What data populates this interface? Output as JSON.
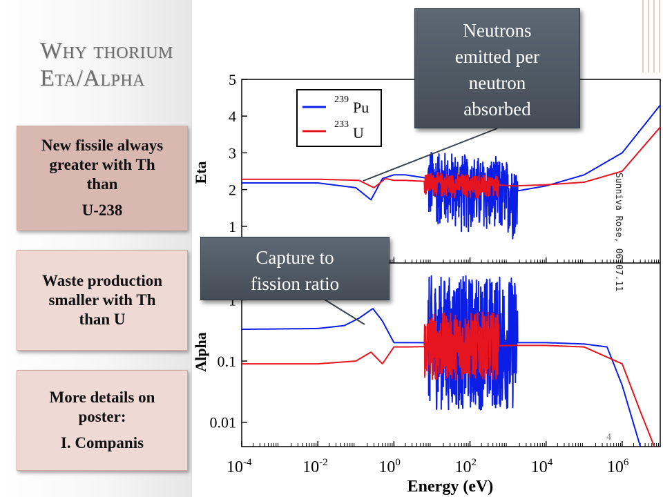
{
  "slide": {
    "title_line1": "Why thorium",
    "title_line2": "Eta/Alpha"
  },
  "cards": [
    {
      "lines": [
        "New fissile always",
        "greater with Th",
        "than"
      ],
      "extra": "U-238"
    },
    {
      "lines": [
        "Waste production",
        "smaller with Th",
        "than U"
      ],
      "extra": ""
    },
    {
      "lines": [
        "More details on",
        "poster:"
      ],
      "extra": "I. Companis"
    }
  ],
  "callouts": {
    "top": [
      "Neutrons",
      "emitted per",
      "neutron",
      "absorbed"
    ],
    "middle": [
      "Capture to",
      "fission ratio"
    ]
  },
  "colors": {
    "pu": "#0b1ee6",
    "u": "#e6141e",
    "callout": "#4f5964",
    "card": "#d9b8b1",
    "card_light": "#efd9d5",
    "title": "#6d6d6d"
  },
  "chart_data": {
    "type": "line",
    "xlabel": "Energy (eV)",
    "x_scale": "log",
    "x_ticks": [
      "10-4",
      "10-2",
      "10^0",
      "10^2",
      "10^4",
      "10^6"
    ],
    "x_range_ev": [
      0.0001,
      10000000
    ],
    "credit": "Sunniva Rose, 06.07.11",
    "page_number": "4",
    "legend": {
      "pu_mass": "239",
      "pu_sym": "Pu",
      "u_mass": "233",
      "u_sym": "U",
      "placement": "top-left"
    },
    "panels": [
      {
        "ylabel": "Eta",
        "y_scale": "linear",
        "y_range": [
          0,
          5
        ],
        "y_ticks": [
          "1",
          "2",
          "3",
          "4",
          "5"
        ],
        "series": [
          {
            "name": "239Pu",
            "x": [
              0.0001,
              0.01,
              0.1,
              0.25,
              0.5,
              1,
              2,
              1500,
              10000,
              100000,
              1000000,
              10000000
            ],
            "y": [
              2.18,
              2.18,
              2.05,
              1.72,
              2.3,
              2.4,
              2.4,
              1.95,
              2.1,
              2.4,
              3.0,
              4.3
            ]
          },
          {
            "name": "233U",
            "x": [
              0.0001,
              0.01,
              0.12,
              0.3,
              0.6,
              1,
              2,
              1500,
              10000,
              100000,
              1000000,
              10000000
            ],
            "y": [
              2.28,
              2.28,
              2.25,
              2.05,
              2.3,
              2.25,
              2.25,
              2.1,
              2.13,
              2.2,
              2.5,
              3.7
            ]
          }
        ]
      },
      {
        "ylabel": "Alpha",
        "y_scale": "log",
        "y_range": [
          0.004,
          4
        ],
        "y_ticks": [
          "0.01",
          "0.1",
          "1"
        ],
        "series": [
          {
            "name": "239Pu",
            "x": [
              0.0001,
              0.01,
              0.05,
              0.12,
              0.28,
              0.5,
              1,
              2,
              1500,
              10000,
              100000,
              400000,
              1000000,
              3000000
            ],
            "y": [
              0.33,
              0.34,
              0.38,
              0.5,
              0.72,
              0.45,
              0.2,
              0.2,
              0.2,
              0.2,
              0.19,
              0.17,
              0.04,
              0.004
            ]
          },
          {
            "name": "233U",
            "x": [
              0.0001,
              0.01,
              0.1,
              0.25,
              0.5,
              1,
              2,
              1500,
              10000,
              100000,
              1000000,
              3000000,
              7000000
            ],
            "y": [
              0.09,
              0.09,
              0.1,
              0.14,
              0.09,
              0.17,
              0.17,
              0.18,
              0.18,
              0.17,
              0.09,
              0.015,
              0.004
            ]
          }
        ]
      }
    ]
  }
}
